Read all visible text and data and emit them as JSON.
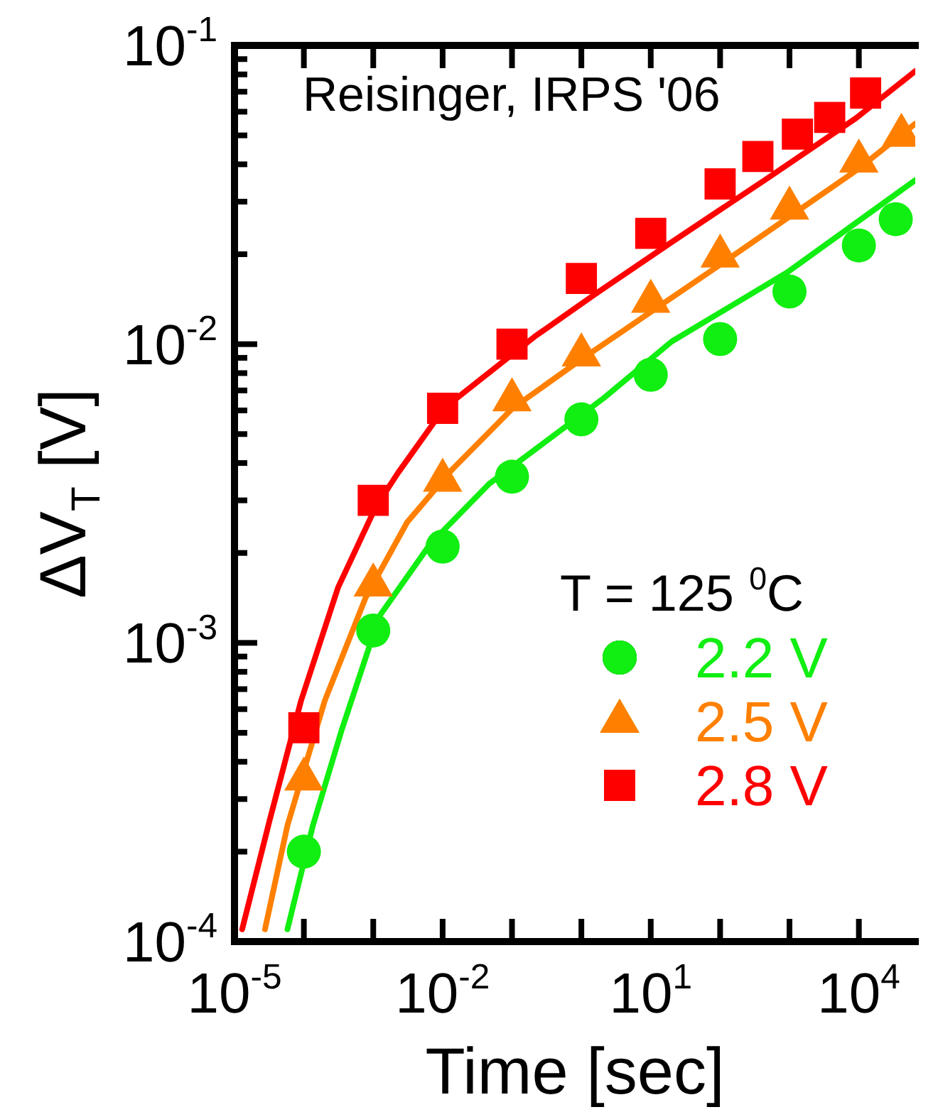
{
  "chart_data": {
    "type": "scatter",
    "xlabel": "Time [sec]",
    "ylabel": "ΔV$_{T}$ [V]",
    "log": "xy",
    "legend": "right",
    "legend_title": "T = 125 $^{0}$C",
    "annotations": [
      "Reisinger, IRPS '06"
    ],
    "xlim": [
      1e-05,
      65000
    ],
    "ylim": [
      0.0001,
      0.1
    ],
    "xticks": [
      {
        "value": 1e-05,
        "label": "10$^{-5}$"
      },
      {
        "value": 0.0001,
        "label": null
      },
      {
        "value": 0.001,
        "label": null
      },
      {
        "value": 0.01,
        "label": "10$^{-2}$"
      },
      {
        "value": 0.1,
        "label": null
      },
      {
        "value": 1,
        "label": null
      },
      {
        "value": 10,
        "label": "10$^{1}$"
      },
      {
        "value": 100,
        "label": null
      },
      {
        "value": 1000,
        "label": null
      },
      {
        "value": 10000,
        "label": "10$^{4}$"
      }
    ],
    "yticks": [
      {
        "value": 0.0001,
        "label": "10$^{-4}$"
      },
      {
        "value": 0.0002,
        "label": null
      },
      {
        "value": 0.0003,
        "label": null
      },
      {
        "value": 0.0004,
        "label": null
      },
      {
        "value": 0.0005,
        "label": null
      },
      {
        "value": 0.0006,
        "label": null
      },
      {
        "value": 0.0007,
        "label": null
      },
      {
        "value": 0.0008,
        "label": null
      },
      {
        "value": 0.0009,
        "label": null
      },
      {
        "value": 0.001,
        "label": "10$^{-3}$"
      },
      {
        "value": 0.002,
        "label": null
      },
      {
        "value": 0.003,
        "label": null
      },
      {
        "value": 0.004,
        "label": null
      },
      {
        "value": 0.005,
        "label": null
      },
      {
        "value": 0.006,
        "label": null
      },
      {
        "value": 0.007,
        "label": null
      },
      {
        "value": 0.008,
        "label": null
      },
      {
        "value": 0.009,
        "label": null
      },
      {
        "value": 0.01,
        "label": "10$^{-2}$"
      },
      {
        "value": 0.02,
        "label": null
      },
      {
        "value": 0.03,
        "label": null
      },
      {
        "value": 0.04,
        "label": null
      },
      {
        "value": 0.05,
        "label": null
      },
      {
        "value": 0.06,
        "label": null
      },
      {
        "value": 0.07,
        "label": null
      },
      {
        "value": 0.08,
        "label": null
      },
      {
        "value": 0.09,
        "label": null
      },
      {
        "value": 0.1,
        "label": "10$^{-1}$"
      }
    ],
    "series": [
      {
        "name": "2.2 V",
        "color": "#11ee11",
        "marker": "circle",
        "x": [
          0.0001,
          0.001,
          0.01,
          0.1,
          1,
          10,
          100,
          1000,
          10000,
          34000
        ],
        "values": [
          0.0002,
          0.0011,
          0.0021,
          0.0036,
          0.0056,
          0.0079,
          0.0104,
          0.015,
          0.0214,
          0.0262
        ]
      },
      {
        "name": "2.5 V",
        "color": "#ff8000",
        "marker": "triangle",
        "x": [
          0.0001,
          0.001,
          0.01,
          0.1,
          1,
          10,
          100,
          1000,
          10000,
          41000
        ],
        "values": [
          0.00035,
          0.00156,
          0.0035,
          0.0065,
          0.0092,
          0.0139,
          0.0197,
          0.0285,
          0.041,
          0.05
        ]
      },
      {
        "name": "2.8 V",
        "color": "#ff0000",
        "marker": "square",
        "x": [
          0.0001,
          0.001,
          0.01,
          0.1,
          1,
          10,
          100,
          350,
          1300,
          3800,
          12500
        ],
        "values": [
          0.00052,
          0.003,
          0.0061,
          0.01,
          0.0166,
          0.0235,
          0.0344,
          0.0425,
          0.0505,
          0.0574,
          0.0693
        ]
      },
      {
        "type": "line",
        "color": "#11ee11",
        "marker": "none",
        "x": [
          5.8e-05,
          0.000135,
          0.00035,
          0.00123,
          0.0066,
          0.047,
          2.1,
          20,
          930,
          65000
        ],
        "values": [
          0.00011,
          0.000245,
          0.00051,
          0.00123,
          0.00214,
          0.00341,
          0.0066,
          0.0102,
          0.0174,
          0.0354
        ]
      },
      {
        "type": "line",
        "color": "#ff8000",
        "marker": "none",
        "x": [
          2.75e-05,
          5.8e-05,
          0.0002,
          0.00078,
          0.0031,
          0.0138,
          0.102,
          1,
          95,
          9100,
          65000
        ],
        "values": [
          0.00011,
          0.000245,
          0.00064,
          0.00142,
          0.00254,
          0.00381,
          0.0061,
          0.0089,
          0.0183,
          0.0381,
          0.0547
        ]
      },
      {
        "type": "line",
        "color": "#ff0000",
        "marker": "none",
        "x": [
          1.29e-05,
          3.2e-05,
          9.1e-05,
          0.00031,
          0.00107,
          0.00224,
          0.0105,
          0.212,
          1.58,
          20.3,
          430,
          9100,
          65000
        ],
        "values": [
          0.00011,
          0.000254,
          0.00064,
          0.00153,
          0.00283,
          0.00369,
          0.0061,
          0.0106,
          0.0147,
          0.022,
          0.0353,
          0.0571,
          0.082
        ]
      }
    ]
  }
}
